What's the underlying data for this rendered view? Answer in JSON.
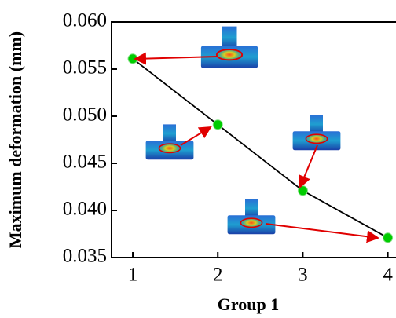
{
  "chart_data": {
    "type": "line",
    "xlabel": "Group 1",
    "ylabel": "Maximum deformation (mm)",
    "x": [
      1,
      2,
      3,
      4
    ],
    "series": [
      {
        "color": "#00cc00",
        "values": [
          0.0561,
          0.0491,
          0.0421,
          0.0371
        ]
      }
    ],
    "xlim": [
      0.75,
      4.17
    ],
    "xticks": [
      1,
      2,
      3,
      4
    ],
    "ylim": [
      0.035,
      0.06
    ],
    "yticks": [
      0.035,
      {
        "value": 0.04,
        "label": "0.040"
      },
      0.045,
      {
        "value": 0.05,
        "label": "0.050"
      },
      0.055,
      {
        "value": 0.06,
        "label": "0.060"
      }
    ],
    "grid": false
  }
}
